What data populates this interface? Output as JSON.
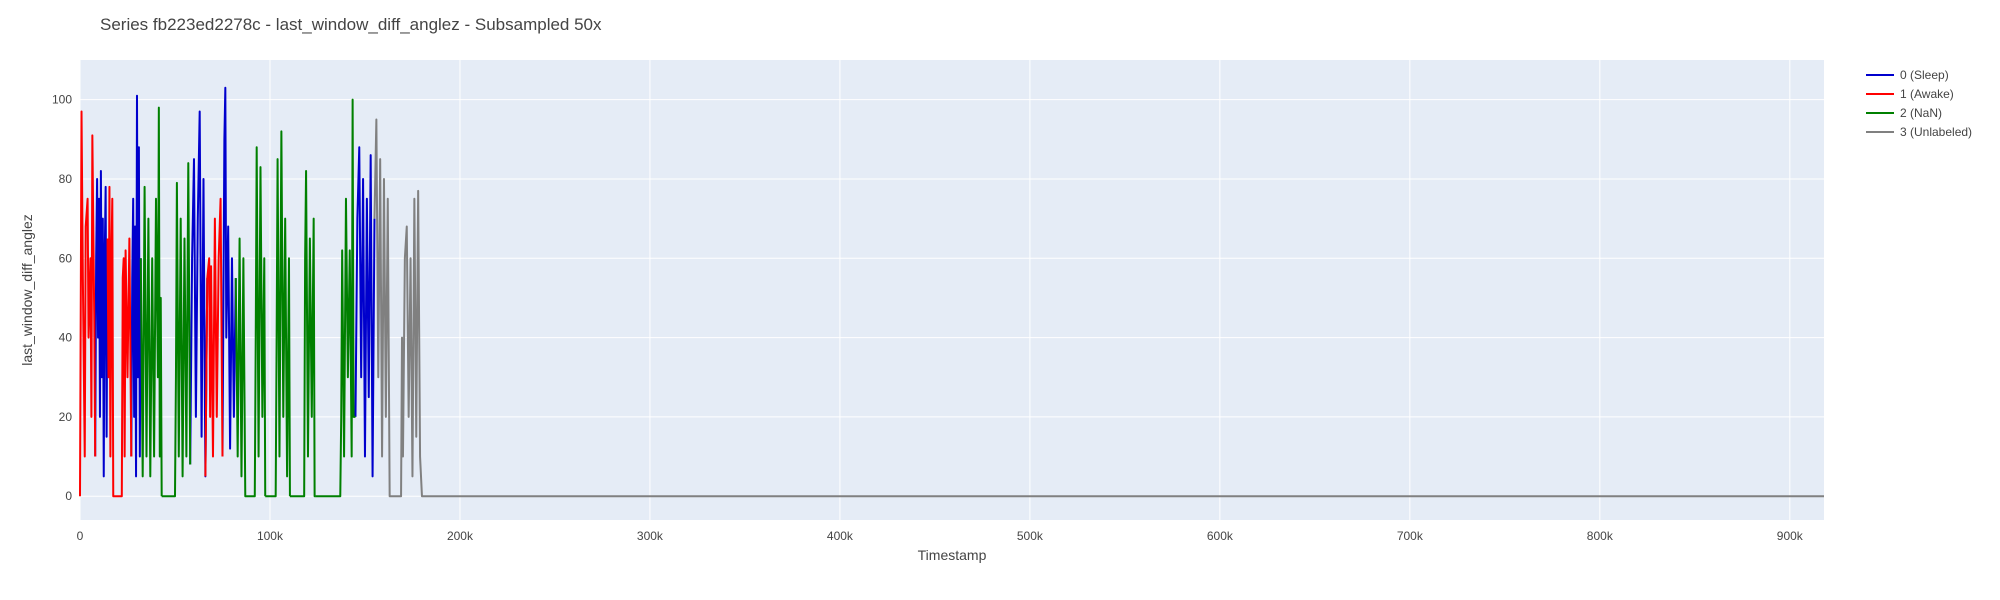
{
  "chart_data": {
    "type": "line",
    "title": "Series fb223ed2278c - last_window_diff_anglez - Subsampled 50x",
    "xlabel": "Timestamp",
    "ylabel": "last_window_diff_anglez",
    "xlim": [
      0,
      918000
    ],
    "ylim": [
      -6,
      110
    ],
    "x_ticks": [
      0,
      100000,
      200000,
      300000,
      400000,
      500000,
      600000,
      700000,
      800000,
      900000
    ],
    "x_tick_labels": [
      "0",
      "100k",
      "200k",
      "300k",
      "400k",
      "500k",
      "600k",
      "700k",
      "800k",
      "900k"
    ],
    "y_ticks": [
      0,
      20,
      40,
      60,
      80,
      100
    ],
    "y_tick_labels": [
      "0",
      "20",
      "40",
      "60",
      "80",
      "100"
    ],
    "grid": true,
    "legend_position": "right",
    "plot_background": "#e5ecf6",
    "series": [
      {
        "name": "0 (Sleep)",
        "color": "#0000cd",
        "segments": [
          [
            [
              8000,
              10
            ],
            [
              8500,
              60
            ],
            [
              9000,
              80
            ],
            [
              9500,
              40
            ],
            [
              10000,
              75
            ],
            [
              10500,
              20
            ],
            [
              11000,
              82
            ],
            [
              11500,
              30
            ],
            [
              12000,
              70
            ],
            [
              12500,
              5
            ],
            [
              13000,
              60
            ],
            [
              13500,
              78
            ],
            [
              14000,
              15
            ],
            [
              14500,
              65
            ]
          ],
          [
            [
              27000,
              10
            ],
            [
              27500,
              55
            ],
            [
              28000,
              75
            ],
            [
              28500,
              20
            ],
            [
              29000,
              68
            ],
            [
              29500,
              5
            ],
            [
              30000,
              101
            ],
            [
              30500,
              30
            ],
            [
              31000,
              88
            ],
            [
              31500,
              10
            ],
            [
              32000,
              60
            ]
          ],
          [
            [
              58000,
              8
            ],
            [
              59000,
              60
            ],
            [
              60000,
              85
            ],
            [
              61000,
              20
            ],
            [
              62000,
              70
            ],
            [
              63000,
              97
            ],
            [
              64000,
              15
            ],
            [
              65000,
              80
            ],
            [
              66000,
              5
            ],
            [
              67000,
              55
            ]
          ],
          [
            [
              75000,
              10
            ],
            [
              76000,
              90
            ],
            [
              76500,
              103
            ],
            [
              77000,
              40
            ],
            [
              78000,
              68
            ],
            [
              79000,
              12
            ],
            [
              80000,
              60
            ],
            [
              81000,
              20
            ],
            [
              82000,
              55
            ]
          ],
          [
            [
              145000,
              20
            ],
            [
              146000,
              70
            ],
            [
              147000,
              88
            ],
            [
              148000,
              30
            ],
            [
              149000,
              80
            ],
            [
              150000,
              10
            ],
            [
              151000,
              75
            ],
            [
              152000,
              25
            ],
            [
              153000,
              86
            ],
            [
              154000,
              5
            ],
            [
              155000,
              70
            ]
          ]
        ]
      },
      {
        "name": "1 (Awake)",
        "color": "#ff0000",
        "segments": [
          [
            [
              0,
              0
            ],
            [
              800,
              97
            ],
            [
              1500,
              55
            ],
            [
              2500,
              10
            ],
            [
              3000,
              68
            ],
            [
              4000,
              75
            ],
            [
              4500,
              40
            ],
            [
              5500,
              60
            ],
            [
              6000,
              20
            ],
            [
              6500,
              91
            ],
            [
              7500,
              45
            ],
            [
              8000,
              10
            ]
          ],
          [
            [
              14500,
              65
            ],
            [
              15000,
              30
            ],
            [
              15500,
              78
            ],
            [
              16000,
              10
            ],
            [
              16500,
              60
            ],
            [
              17000,
              75
            ],
            [
              17500,
              0
            ],
            [
              18000,
              0
            ],
            [
              22000,
              0
            ],
            [
              22500,
              55
            ],
            [
              23000,
              60
            ],
            [
              23500,
              10
            ],
            [
              24000,
              62
            ],
            [
              25000,
              30
            ],
            [
              26000,
              65
            ],
            [
              27000,
              10
            ]
          ],
          [
            [
              66000,
              5
            ],
            [
              67000,
              55
            ],
            [
              68000,
              60
            ],
            [
              68500,
              20
            ],
            [
              69000,
              58
            ],
            [
              70000,
              10
            ],
            [
              71000,
              70
            ],
            [
              72000,
              20
            ],
            [
              73000,
              60
            ],
            [
              74000,
              75
            ],
            [
              75000,
              10
            ]
          ]
        ]
      },
      {
        "name": "2 (NaN)",
        "color": "#008000",
        "segments": [
          [
            [
              32000,
              60
            ],
            [
              33000,
              5
            ],
            [
              34000,
              78
            ],
            [
              35000,
              10
            ],
            [
              36000,
              70
            ],
            [
              37000,
              5
            ],
            [
              38000,
              60
            ],
            [
              39000,
              10
            ],
            [
              40000,
              75
            ],
            [
              41000,
              30
            ],
            [
              41500,
              98
            ],
            [
              42000,
              10
            ],
            [
              42500,
              50
            ],
            [
              43000,
              0
            ]
          ],
          [
            [
              43000,
              0
            ],
            [
              50000,
              0
            ],
            [
              50500,
              30
            ],
            [
              51000,
              79
            ],
            [
              52000,
              10
            ],
            [
              53000,
              70
            ],
            [
              54000,
              5
            ],
            [
              55000,
              65
            ],
            [
              56000,
              10
            ],
            [
              57000,
              84
            ],
            [
              58000,
              8
            ]
          ],
          [
            [
              82000,
              55
            ],
            [
              83000,
              10
            ],
            [
              84000,
              65
            ],
            [
              85000,
              5
            ],
            [
              86000,
              60
            ],
            [
              87000,
              0
            ],
            [
              92000,
              0
            ],
            [
              92500,
              40
            ],
            [
              93000,
              88
            ],
            [
              94000,
              10
            ],
            [
              95000,
              83
            ],
            [
              96000,
              20
            ],
            [
              97000,
              60
            ],
            [
              97500,
              0
            ]
          ],
          [
            [
              97500,
              0
            ],
            [
              103000,
              0
            ],
            [
              103500,
              40
            ],
            [
              104000,
              85
            ],
            [
              105000,
              10
            ],
            [
              106000,
              92
            ],
            [
              107000,
              20
            ],
            [
              108000,
              70
            ],
            [
              109000,
              5
            ],
            [
              110000,
              60
            ],
            [
              110500,
              0
            ]
          ],
          [
            [
              110500,
              0
            ],
            [
              118000,
              0
            ],
            [
              118500,
              60
            ],
            [
              119000,
              82
            ],
            [
              120000,
              10
            ],
            [
              121000,
              65
            ],
            [
              122000,
              20
            ],
            [
              123000,
              70
            ],
            [
              123500,
              0
            ],
            [
              124000,
              0
            ]
          ],
          [
            [
              124000,
              0
            ],
            [
              137000,
              0
            ],
            [
              137500,
              20
            ],
            [
              138000,
              62
            ],
            [
              139000,
              10
            ],
            [
              140000,
              75
            ],
            [
              141000,
              30
            ],
            [
              142000,
              62
            ],
            [
              143000,
              10
            ],
            [
              143500,
              100
            ],
            [
              144000,
              20
            ],
            [
              145000,
              20
            ]
          ]
        ]
      },
      {
        "name": "3 (Unlabeled)",
        "color": "#808080",
        "segments": [
          [
            [
              155000,
              70
            ],
            [
              156000,
              95
            ],
            [
              157000,
              30
            ],
            [
              158000,
              85
            ],
            [
              159000,
              10
            ],
            [
              160000,
              80
            ],
            [
              161000,
              20
            ],
            [
              162000,
              75
            ],
            [
              163000,
              0
            ],
            [
              169000,
              0
            ],
            [
              169500,
              40
            ],
            [
              170000,
              10
            ],
            [
              171000,
              60
            ],
            [
              172000,
              68
            ],
            [
              173000,
              20
            ],
            [
              174000,
              60
            ],
            [
              175000,
              5
            ],
            [
              176000,
              75
            ],
            [
              177000,
              15
            ],
            [
              178000,
              77
            ],
            [
              179000,
              10
            ],
            [
              180000,
              0
            ],
            [
              918000,
              0
            ]
          ]
        ]
      }
    ]
  }
}
